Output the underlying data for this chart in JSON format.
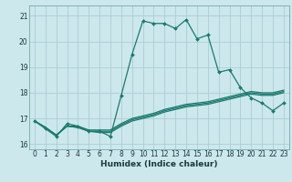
{
  "title": "",
  "xlabel": "Humidex (Indice chaleur)",
  "ylabel": "",
  "bg_color": "#cce8ec",
  "grid_color": "#aacdd4",
  "line_color": "#1a7a6e",
  "ylim": [
    15.8,
    21.4
  ],
  "xlim": [
    -0.5,
    23.5
  ],
  "yticks": [
    16,
    17,
    18,
    19,
    20,
    21
  ],
  "xticks": [
    0,
    1,
    2,
    3,
    4,
    5,
    6,
    7,
    8,
    9,
    10,
    11,
    12,
    13,
    14,
    15,
    16,
    17,
    18,
    19,
    20,
    21,
    22,
    23
  ],
  "lines": [
    {
      "x": [
        0,
        1,
        2,
        3,
        4,
        5,
        6,
        7,
        8,
        9,
        10,
        11,
        12,
        13,
        14,
        15,
        16,
        17,
        18,
        19,
        20,
        21,
        22,
        23
      ],
      "y": [
        16.9,
        16.6,
        16.3,
        16.8,
        16.7,
        16.5,
        16.5,
        16.3,
        17.9,
        19.5,
        20.8,
        20.7,
        20.7,
        20.5,
        20.85,
        20.1,
        20.25,
        18.8,
        18.9,
        18.2,
        17.8,
        17.6,
        17.3,
        17.6
      ],
      "marker": true
    },
    {
      "x": [
        0,
        1,
        2,
        3,
        4,
        5,
        6,
        7,
        8,
        9,
        10,
        11,
        12,
        13,
        14,
        15,
        16,
        17,
        18,
        19,
        20,
        21,
        22,
        23
      ],
      "y": [
        16.9,
        16.65,
        16.35,
        16.7,
        16.7,
        16.55,
        16.55,
        16.55,
        16.8,
        17.0,
        17.1,
        17.2,
        17.35,
        17.45,
        17.55,
        17.6,
        17.65,
        17.75,
        17.85,
        17.95,
        18.05,
        18.0,
        18.0,
        18.1
      ],
      "marker": false
    },
    {
      "x": [
        0,
        1,
        2,
        3,
        4,
        5,
        6,
        7,
        8,
        9,
        10,
        11,
        12,
        13,
        14,
        15,
        16,
        17,
        18,
        19,
        20,
        21,
        22,
        23
      ],
      "y": [
        16.9,
        16.65,
        16.35,
        16.7,
        16.65,
        16.5,
        16.5,
        16.5,
        16.75,
        16.95,
        17.05,
        17.15,
        17.3,
        17.4,
        17.5,
        17.55,
        17.6,
        17.7,
        17.8,
        17.9,
        18.0,
        17.95,
        17.95,
        18.05
      ],
      "marker": false
    },
    {
      "x": [
        0,
        1,
        2,
        3,
        4,
        5,
        6,
        7,
        8,
        9,
        10,
        11,
        12,
        13,
        14,
        15,
        16,
        17,
        18,
        19,
        20,
        21,
        22,
        23
      ],
      "y": [
        16.9,
        16.65,
        16.35,
        16.7,
        16.65,
        16.5,
        16.45,
        16.45,
        16.7,
        16.9,
        17.0,
        17.1,
        17.25,
        17.35,
        17.45,
        17.5,
        17.55,
        17.65,
        17.75,
        17.85,
        17.95,
        17.9,
        17.9,
        18.0
      ],
      "marker": false
    }
  ]
}
